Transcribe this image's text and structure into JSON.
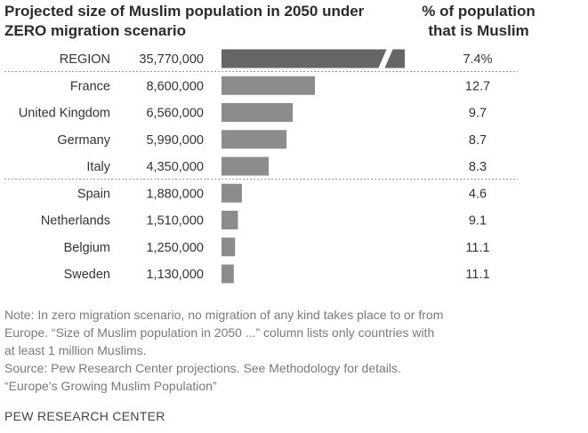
{
  "title": "Projected size of Muslim population in 2050 under ZERO migration scenario",
  "right_title": "% of population that is Muslim",
  "chart_data": {
    "type": "bar",
    "orientation": "horizontal",
    "categories": [
      "REGION",
      "France",
      "United Kingdom",
      "Germany",
      "Italy",
      "Spain",
      "Netherlands",
      "Belgium",
      "Sweden"
    ],
    "series": [
      {
        "values": [
          35770000,
          8600000,
          6560000,
          5990000,
          4350000,
          1880000,
          1510000,
          1250000,
          1130000
        ],
        "labels": [
          "35,770,000",
          "8,600,000",
          "6,560,000",
          "5,990,000",
          "4,350,000",
          "1,880,000",
          "1,510,000",
          "1,250,000",
          "1,130,000"
        ]
      }
    ],
    "percent_muslim": [
      "7.4%",
      "12.7",
      "9.7",
      "8.7",
      "8.3",
      "4.6",
      "9.1",
      "11.1",
      "11.1"
    ],
    "axis_break_on": "REGION",
    "bar_color": "#8c8c8c",
    "region_bar_color": "#666666"
  },
  "notes": [
    "Note: In zero migration scenario, no migration of any kind takes place to or from",
    "Europe. “Size of Muslim population in 2050 ...” column lists only countries with",
    "at least 1 million Muslims.",
    "Source: Pew Research Center projections. See Methodology for details.",
    "“Europe’s Growing Muslim Population”"
  ],
  "brand": "PEW RESEARCH CENTER"
}
